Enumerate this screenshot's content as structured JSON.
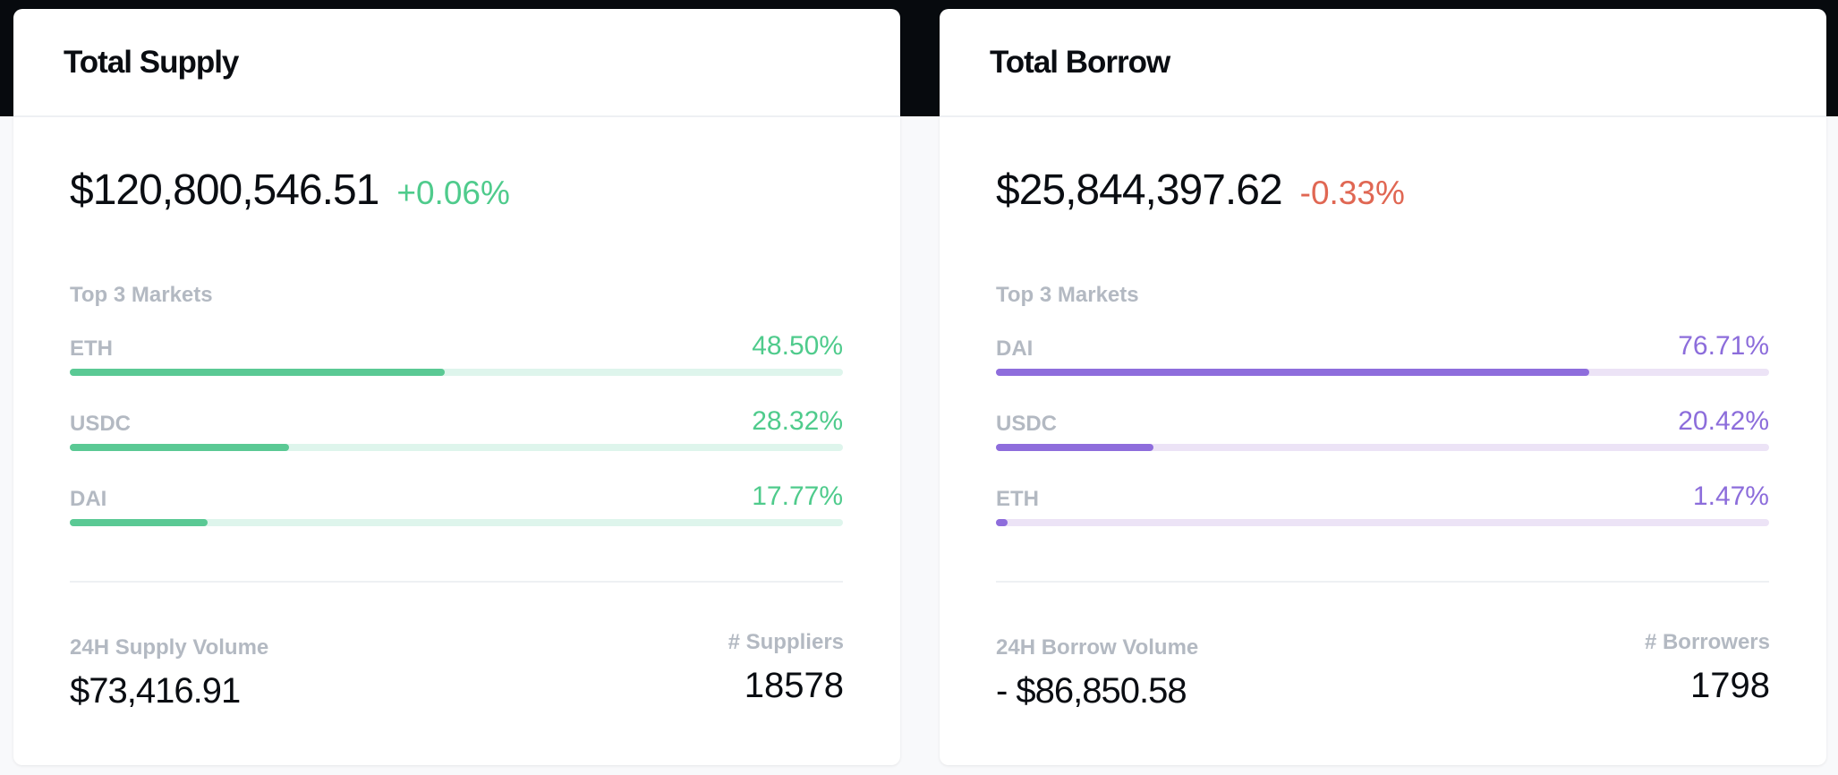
{
  "supply": {
    "title": "Total Supply",
    "total": "$120,800,546.51",
    "change": "+0.06%",
    "markets_label": "Top 3 Markets",
    "markets": [
      {
        "name": "ETH",
        "percent": "48.50%",
        "share": 48.5
      },
      {
        "name": "USDC",
        "percent": "28.32%",
        "share": 28.32
      },
      {
        "name": "DAI",
        "percent": "17.77%",
        "share": 17.77
      }
    ],
    "volume_label": "24H Supply Volume",
    "volume": "$73,416.91",
    "count_label": "# Suppliers",
    "count": "18578"
  },
  "borrow": {
    "title": "Total Borrow",
    "total": "$25,844,397.62",
    "change": "-0.33%",
    "markets_label": "Top 3 Markets",
    "markets": [
      {
        "name": "DAI",
        "percent": "76.71%",
        "share": 76.71
      },
      {
        "name": "USDC",
        "percent": "20.42%",
        "share": 20.42
      },
      {
        "name": "ETH",
        "percent": "1.47%",
        "share": 1.47
      }
    ],
    "volume_label": "24H Borrow Volume",
    "volume": "- $86,850.58",
    "count_label": "# Borrowers",
    "count": "1798"
  },
  "colors": {
    "positive": "#4fcb8c",
    "negative": "#e06753",
    "supply_bar": "#5ac994",
    "borrow_bar": "#8e6ddc"
  }
}
